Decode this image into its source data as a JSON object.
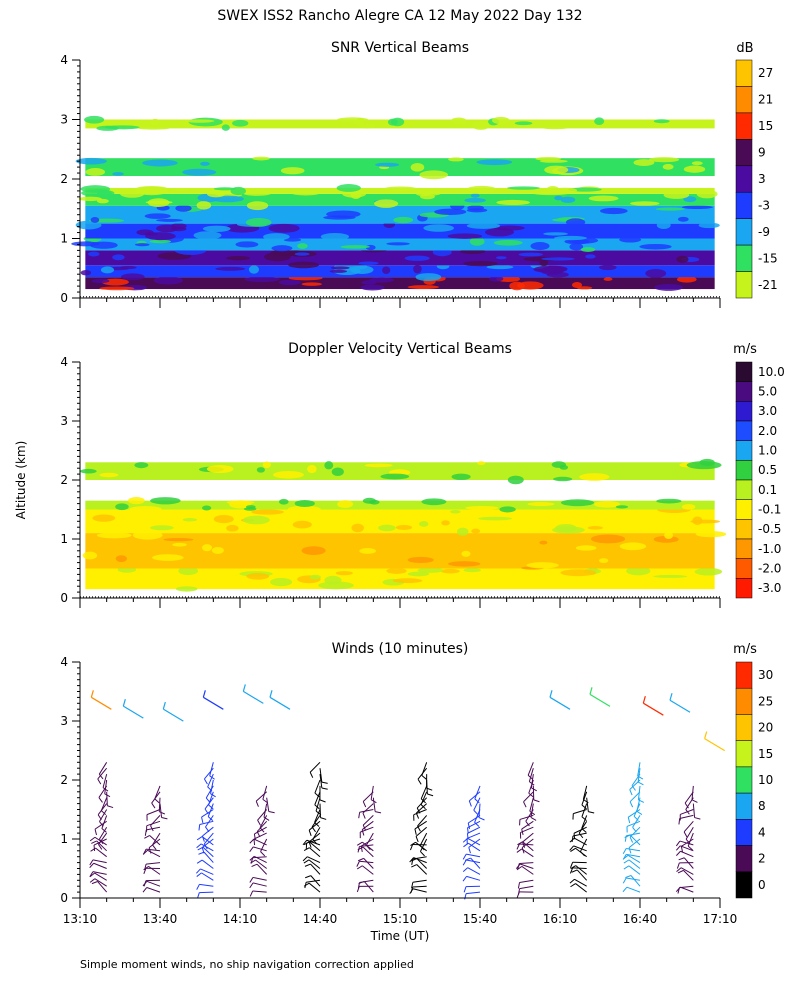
{
  "figure": {
    "title": "SWEX ISS2 Rancho Alegre CA  12 May 2022 Day 132",
    "ylabel": "Altitude (km)",
    "xlabel": "Time (UT)",
    "footnote": "Simple moment winds, no ship navigation correction applied"
  },
  "chart_data": [
    {
      "type": "heatmap",
      "title": "SNR Vertical Beams",
      "colorbar_unit": "dB",
      "colorbar_labels": [
        "27",
        "21",
        "15",
        "9",
        "3",
        "-3",
        "-9",
        "-15",
        "-21"
      ],
      "colorbar_colors": [
        "#ffc400",
        "#ff8c00",
        "#ff2a00",
        "#4a0a55",
        "#4b0ba0",
        "#1e3cff",
        "#1aa6f0",
        "#30e060",
        "#c6f31c"
      ],
      "ylim": [
        0,
        4
      ],
      "yticks": [
        0,
        1,
        2,
        3,
        4
      ],
      "xlim_minutes": [
        0,
        240
      ],
      "layers": [
        {
          "alt_min": 0.15,
          "alt_max": 0.35,
          "level": "9"
        },
        {
          "alt_min": 0.35,
          "alt_max": 0.55,
          "level": "-3"
        },
        {
          "alt_min": 0.55,
          "alt_max": 0.8,
          "level": "3"
        },
        {
          "alt_min": 0.8,
          "alt_max": 1.0,
          "level": "-9"
        },
        {
          "alt_min": 1.0,
          "alt_max": 1.25,
          "level": "-3"
        },
        {
          "alt_min": 1.25,
          "alt_max": 1.55,
          "level": "-9"
        },
        {
          "alt_min": 1.55,
          "alt_max": 1.75,
          "level": "-15"
        },
        {
          "alt_min": 1.75,
          "alt_max": 1.85,
          "level": "-21"
        },
        {
          "alt_min": 2.05,
          "alt_max": 2.35,
          "level": "-15"
        },
        {
          "alt_min": 2.85,
          "alt_max": 3.0,
          "level": "-21"
        }
      ]
    },
    {
      "type": "heatmap",
      "title": "Doppler Velocity Vertical Beams",
      "colorbar_unit": "m/s",
      "colorbar_labels": [
        "10.0",
        "5.0",
        "3.0",
        "2.0",
        "1.0",
        "0.5",
        "0.1",
        "-0.1",
        "-0.5",
        "-1.0",
        "-2.0",
        "-3.0"
      ],
      "colorbar_colors": [
        "#2a0a30",
        "#4a0a80",
        "#2e1ad0",
        "#1e4cff",
        "#1aa6f0",
        "#30d040",
        "#b8f020",
        "#fff000",
        "#ffc400",
        "#ff9800",
        "#ff5a00",
        "#ff1a00"
      ],
      "ylim": [
        0,
        4
      ],
      "yticks": [
        0,
        1,
        2,
        3,
        4
      ],
      "xlim_minutes": [
        0,
        240
      ],
      "layers": [
        {
          "alt_min": 0.15,
          "alt_max": 0.5,
          "level": "-0.1"
        },
        {
          "alt_min": 0.5,
          "alt_max": 1.1,
          "level": "-0.5"
        },
        {
          "alt_min": 1.1,
          "alt_max": 1.5,
          "level": "-0.1"
        },
        {
          "alt_min": 1.5,
          "alt_max": 1.65,
          "level": "0.1"
        },
        {
          "alt_min": 2.0,
          "alt_max": 2.3,
          "level": "0.1"
        }
      ]
    },
    {
      "type": "wind_barbs",
      "title": "Winds (10 minutes)",
      "colorbar_unit": "m/s",
      "colorbar_labels": [
        "30",
        "25",
        "20",
        "15",
        "10",
        "8",
        "4",
        "2",
        "0"
      ],
      "colorbar_colors": [
        "#ff2a00",
        "#ff8c00",
        "#ffc400",
        "#c6f31c",
        "#30e060",
        "#1aa6f0",
        "#1e3cff",
        "#4a0a55",
        "#000000"
      ],
      "ylim": [
        0,
        4
      ],
      "yticks": [
        0,
        1,
        2,
        3,
        4
      ],
      "xlim_minutes": [
        0,
        240
      ],
      "xtick_labels": [
        "13:10",
        "13:40",
        "14:10",
        "14:40",
        "15:10",
        "15:40",
        "16:10",
        "16:40",
        "17:10"
      ],
      "profile_times_minutes": [
        10,
        30,
        50,
        70,
        90,
        110,
        130,
        150,
        170,
        190,
        210,
        230
      ],
      "profile_colors": [
        "#4a0a55",
        "#4a0a55",
        "#1e3cff",
        "#4a0a55",
        "#000000",
        "#4a0a55",
        "#000000",
        "#1e3cff",
        "#4a0a55",
        "#000000",
        "#1aa6f0",
        "#4a0a55"
      ],
      "upper_barbs": [
        {
          "t": 8,
          "alt": 3.3,
          "color": "#ff8c00"
        },
        {
          "t": 20,
          "alt": 3.15,
          "color": "#1aa6f0"
        },
        {
          "t": 35,
          "alt": 3.1,
          "color": "#1aa6f0"
        },
        {
          "t": 50,
          "alt": 3.3,
          "color": "#1e3cff"
        },
        {
          "t": 65,
          "alt": 3.4,
          "color": "#1aa6f0"
        },
        {
          "t": 75,
          "alt": 3.3,
          "color": "#1aa6f0"
        },
        {
          "t": 180,
          "alt": 3.3,
          "color": "#1aa6f0"
        },
        {
          "t": 195,
          "alt": 3.35,
          "color": "#30e060"
        },
        {
          "t": 215,
          "alt": 3.2,
          "color": "#ff2a00"
        },
        {
          "t": 225,
          "alt": 3.25,
          "color": "#1aa6f0"
        },
        {
          "t": 238,
          "alt": 2.6,
          "color": "#ffc400"
        }
      ]
    }
  ]
}
